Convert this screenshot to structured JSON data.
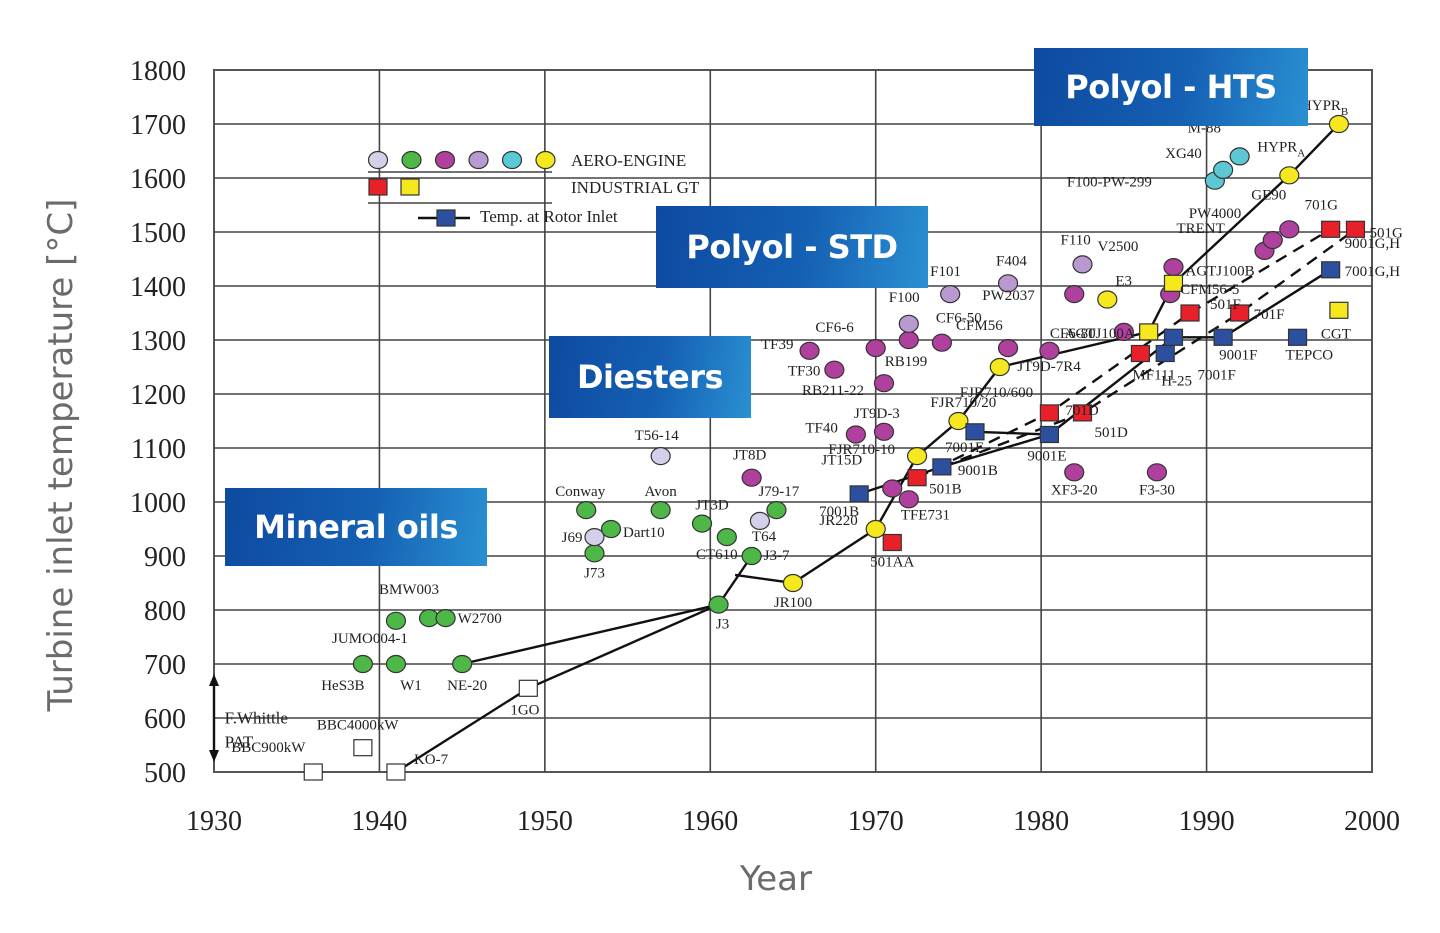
{
  "chart_data": {
    "type": "scatter",
    "title": "",
    "xlabel": "Year",
    "ylabel": "Turbine inlet temperature [°C]",
    "xlim": [
      1930,
      2000
    ],
    "ylim": [
      500,
      1800
    ],
    "xticks": [
      1930,
      1940,
      1950,
      1960,
      1970,
      1980,
      1990,
      2000
    ],
    "yticks": [
      500,
      600,
      700,
      800,
      900,
      1000,
      1100,
      1200,
      1300,
      1400,
      1500,
      1600,
      1700,
      1800
    ],
    "grid": true,
    "legend": {
      "placement": "top-left",
      "entries": [
        {
          "label": "AERO-ENGINE",
          "markers": [
            "circle-lavender",
            "circle-green",
            "circle-magenta",
            "circle-violet",
            "circle-cyan",
            "circle-yellow"
          ]
        },
        {
          "label": "INDUSTRIAL GT",
          "markers": [
            "square-red",
            "square-yellow"
          ]
        },
        {
          "label": "Temp. at Rotor Inlet",
          "markers": [
            "line-square-blue"
          ]
        }
      ]
    },
    "colors": {
      "lavender": "#d4d0ea",
      "green": "#4db848",
      "magenta": "#b0409e",
      "violet": "#b89ad0",
      "cyan": "#5cc8d4",
      "yellow": "#f5e81e",
      "red": "#e8202a",
      "blue": "#2c4fa0",
      "white": "#ffffff"
    },
    "lubricant_bands": [
      {
        "label": "Mineral oils",
        "year": 1939,
        "temp": 950
      },
      {
        "label": "Diesters",
        "year": 1960,
        "temp": 1240
      },
      {
        "label": "Polyol - STD",
        "year": 1967,
        "temp": 1480
      },
      {
        "label": "Polyol - HTS",
        "year": 1988,
        "temp": 1720
      }
    ],
    "annotations": [
      {
        "text": "F.Whittle",
        "year": 1930.4,
        "temp": 590
      },
      {
        "text": "PAT",
        "year": 1930.4,
        "temp": 545
      }
    ],
    "series": [
      {
        "name": "Aero-engine",
        "marker": "circle",
        "points": [
          {
            "label": "HeS3B",
            "year": 1939,
            "temp": 700,
            "color": "green"
          },
          {
            "label": "W1",
            "year": 1941,
            "temp": 700,
            "color": "green"
          },
          {
            "label": "NE-20",
            "year": 1945,
            "temp": 700,
            "color": "green"
          },
          {
            "label": "JUMO004-1",
            "year": 1941,
            "temp": 780,
            "color": "green"
          },
          {
            "label": "BMW003",
            "year": 1943,
            "temp": 785,
            "color": "green"
          },
          {
            "label": "W2700",
            "year": 1944,
            "temp": 785,
            "color": "green"
          },
          {
            "label": "J3",
            "year": 1960.5,
            "temp": 810,
            "color": "green"
          },
          {
            "label": "J73",
            "year": 1953,
            "temp": 905,
            "color": "green"
          },
          {
            "label": "J69",
            "year": 1953,
            "temp": 935,
            "color": "lavender"
          },
          {
            "label": "Dart10",
            "year": 1954,
            "temp": 950,
            "color": "green"
          },
          {
            "label": "Conway",
            "year": 1952.5,
            "temp": 985,
            "color": "green"
          },
          {
            "label": "Avon",
            "year": 1957,
            "temp": 985,
            "color": "green"
          },
          {
            "label": "JT3D",
            "year": 1959.5,
            "temp": 960,
            "color": "green"
          },
          {
            "label": "CT610",
            "year": 1961,
            "temp": 935,
            "color": "green"
          },
          {
            "label": "J3-7",
            "year": 1962.5,
            "temp": 900,
            "color": "green"
          },
          {
            "label": "T64",
            "year": 1963,
            "temp": 965,
            "color": "lavender"
          },
          {
            "label": "J79-17",
            "year": 1964,
            "temp": 985,
            "color": "green"
          },
          {
            "label": "T56-14",
            "year": 1957,
            "temp": 1085,
            "color": "lavender"
          },
          {
            "label": "JT8D",
            "year": 1962.5,
            "temp": 1045,
            "color": "magenta"
          },
          {
            "label": "JR100",
            "year": 1965,
            "temp": 850,
            "color": "yellow"
          },
          {
            "label": "JR220",
            "year": 1970,
            "temp": 950,
            "color": "yellow"
          },
          {
            "label": "FJR710-10",
            "year": 1972.5,
            "temp": 1085,
            "color": "yellow"
          },
          {
            "label": "FJR710/20",
            "year": 1975,
            "temp": 1150,
            "color": "yellow"
          },
          {
            "label": "FJR710/600",
            "year": 1977.5,
            "temp": 1250,
            "color": "yellow"
          },
          {
            "label": "JT15D",
            "year": 1971,
            "temp": 1025,
            "color": "magenta"
          },
          {
            "label": "TFE731",
            "year": 1972,
            "temp": 1005,
            "color": "magenta"
          },
          {
            "label": "TF40",
            "year": 1968.8,
            "temp": 1125,
            "color": "magenta"
          },
          {
            "label": "JT9D-3",
            "year": 1970.5,
            "temp": 1130,
            "color": "magenta"
          },
          {
            "label": "RB211-22",
            "year": 1970.5,
            "temp": 1220,
            "color": "magenta"
          },
          {
            "label": "TF39",
            "year": 1966,
            "temp": 1280,
            "color": "magenta"
          },
          {
            "label": "TF30",
            "year": 1967.5,
            "temp": 1245,
            "color": "magenta"
          },
          {
            "label": "CF6-6",
            "year": 1970,
            "temp": 1285,
            "color": "magenta"
          },
          {
            "label": "RB199",
            "year": 1972,
            "temp": 1300,
            "color": "magenta"
          },
          {
            "label": "F100",
            "year": 1972,
            "temp": 1330,
            "color": "violet"
          },
          {
            "label": "CF6-50",
            "year": 1974,
            "temp": 1295,
            "color": "magenta"
          },
          {
            "label": "F101",
            "year": 1974.5,
            "temp": 1385,
            "color": "violet"
          },
          {
            "label": "F404",
            "year": 1978,
            "temp": 1405,
            "color": "violet"
          },
          {
            "label": "CFM56",
            "year": 1978,
            "temp": 1285,
            "color": "magenta"
          },
          {
            "label": "JT9D-7R4",
            "year": 1980.5,
            "temp": 1280,
            "color": "magenta"
          },
          {
            "label": "PW2037",
            "year": 1982,
            "temp": 1385,
            "color": "magenta"
          },
          {
            "label": "F110",
            "year": 1982.5,
            "temp": 1440,
            "color": "violet"
          },
          {
            "label": "E3",
            "year": 1984,
            "temp": 1375,
            "color": "yellow"
          },
          {
            "label": "CF6-80",
            "year": 1985,
            "temp": 1315,
            "color": "magenta"
          },
          {
            "label": "XF3-20",
            "year": 1982,
            "temp": 1055,
            "color": "magenta"
          },
          {
            "label": "F3-30",
            "year": 1987,
            "temp": 1055,
            "color": "magenta"
          },
          {
            "label": "V2500",
            "year": 1988,
            "temp": 1435,
            "color": "magenta"
          },
          {
            "label": "CFM56-5",
            "year": 1987.8,
            "temp": 1385,
            "color": "magenta"
          },
          {
            "label": "F100-PW-299",
            "year": 1990.5,
            "temp": 1595,
            "color": "cyan"
          },
          {
            "label": "XG40",
            "year": 1991,
            "temp": 1615,
            "color": "cyan"
          },
          {
            "label": "M-88",
            "year": 1992,
            "temp": 1640,
            "color": "cyan"
          },
          {
            "label": "TRENT",
            "year": 1993.5,
            "temp": 1465,
            "color": "magenta"
          },
          {
            "label": "PW4000",
            "year": 1994,
            "temp": 1485,
            "color": "magenta"
          },
          {
            "label": "GE90",
            "year": 1995,
            "temp": 1505,
            "color": "magenta"
          },
          {
            "label": "HYPR_A",
            "year": 1995,
            "temp": 1605,
            "color": "yellow"
          },
          {
            "label": "HYPR_B",
            "year": 1998,
            "temp": 1700,
            "color": "yellow"
          }
        ]
      },
      {
        "name": "Industrial GT",
        "marker": "square",
        "points": [
          {
            "label": "BBC900kW",
            "year": 1936,
            "temp": 500,
            "color": "white"
          },
          {
            "label": "KO-7",
            "year": 1941,
            "temp": 500,
            "color": "white"
          },
          {
            "label": "BBC4000kW",
            "year": 1939,
            "temp": 545,
            "color": "white"
          },
          {
            "label": "1GO",
            "year": 1949,
            "temp": 655,
            "color": "white"
          },
          {
            "label": "501AA",
            "year": 1971,
            "temp": 925,
            "color": "red"
          },
          {
            "label": "501B",
            "year": 1972.5,
            "temp": 1045,
            "color": "red"
          },
          {
            "label": "701D",
            "year": 1980.5,
            "temp": 1165,
            "color": "red"
          },
          {
            "label": "501D",
            "year": 1982.5,
            "temp": 1165,
            "color": "red"
          },
          {
            "label": "MF111",
            "year": 1986,
            "temp": 1275,
            "color": "red"
          },
          {
            "label": "AGTJ100A",
            "year": 1986.5,
            "temp": 1315,
            "color": "yellow"
          },
          {
            "label": "AGTJ100B",
            "year": 1988,
            "temp": 1405,
            "color": "yellow"
          },
          {
            "label": "501F",
            "year": 1989,
            "temp": 1350,
            "color": "red"
          },
          {
            "label": "701F",
            "year": 1992,
            "temp": 1350,
            "color": "red"
          },
          {
            "label": "701G",
            "year": 1997.5,
            "temp": 1505,
            "color": "red"
          },
          {
            "label": "501G",
            "year": 1999,
            "temp": 1505,
            "color": "red"
          },
          {
            "label": "CGT",
            "year": 1998,
            "temp": 1355,
            "color": "yellow"
          }
        ]
      },
      {
        "name": "Temp. at Rotor Inlet",
        "marker": "square",
        "points": [
          {
            "label": "7001B",
            "year": 1969,
            "temp": 1015,
            "color": "blue"
          },
          {
            "label": "9001B",
            "year": 1974,
            "temp": 1065,
            "color": "blue"
          },
          {
            "label": "7001E",
            "year": 1976,
            "temp": 1130,
            "color": "blue"
          },
          {
            "label": "9001E",
            "year": 1980.5,
            "temp": 1125,
            "color": "blue"
          },
          {
            "label": "H-25",
            "year": 1987.5,
            "temp": 1275,
            "color": "blue"
          },
          {
            "label": "7001F",
            "year": 1988,
            "temp": 1305,
            "color": "blue"
          },
          {
            "label": "9001F",
            "year": 1991,
            "temp": 1305,
            "color": "blue"
          },
          {
            "label": "TEPCO",
            "year": 1995.5,
            "temp": 1305,
            "color": "blue"
          },
          {
            "label": "9001G,H / 7001G,H",
            "year": 1997.5,
            "temp": 1430,
            "color": "blue"
          }
        ]
      }
    ],
    "trend_lines": {
      "solid": [
        [
          [
            1945,
            700
          ],
          [
            1960.5,
            810
          ]
        ],
        [
          [
            1941,
            500
          ],
          [
            1949,
            655
          ],
          [
            1960.5,
            810
          ],
          [
            1962.5,
            900
          ]
        ],
        [
          [
            1961.5,
            865
          ],
          [
            1965,
            850
          ],
          [
            1970,
            950
          ],
          [
            1972.5,
            1085
          ],
          [
            1975,
            1150
          ],
          [
            1977.5,
            1250
          ],
          [
            1986.5,
            1315
          ],
          [
            1988,
            1405
          ],
          [
            1995,
            1605
          ],
          [
            1998,
            1700
          ]
        ],
        [
          [
            1969,
            1015
          ],
          [
            1974,
            1065
          ],
          [
            1980.5,
            1125
          ],
          [
            1988,
            1305
          ],
          [
            1991,
            1305
          ],
          [
            1997.5,
            1430
          ]
        ],
        [
          [
            1976,
            1130
          ],
          [
            1980.5,
            1125
          ]
        ]
      ],
      "dashed": [
        [
          [
            1972.5,
            1045
          ],
          [
            1980.5,
            1165
          ],
          [
            1989,
            1350
          ],
          [
            1997.5,
            1505
          ]
        ],
        [
          [
            1974,
            1065
          ],
          [
            1982.5,
            1165
          ],
          [
            1992,
            1350
          ],
          [
            1999,
            1505
          ]
        ]
      ]
    }
  }
}
